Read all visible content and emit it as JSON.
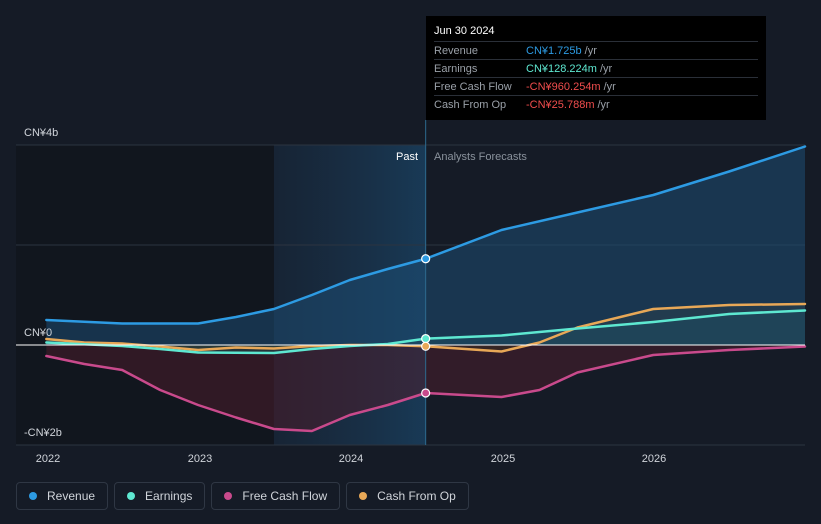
{
  "tooltip": {
    "date": "Jun 30 2024",
    "rows": [
      {
        "label": "Revenue",
        "value": "CN¥1.725b",
        "unit": "/yr",
        "color": "#2d9be3"
      },
      {
        "label": "Earnings",
        "value": "CN¥128.224m",
        "unit": "/yr",
        "color": "#5ee8d1"
      },
      {
        "label": "Free Cash Flow",
        "value": "-CN¥960.254m",
        "unit": "/yr",
        "color": "#f04d4d"
      },
      {
        "label": "Cash From Op",
        "value": "-CN¥25.788m",
        "unit": "/yr",
        "color": "#f04d4d"
      }
    ]
  },
  "legend": [
    {
      "label": "Revenue",
      "color": "#2d9be3"
    },
    {
      "label": "Earnings",
      "color": "#5ee8d1"
    },
    {
      "label": "Free Cash Flow",
      "color": "#c94a8c"
    },
    {
      "label": "Cash From Op",
      "color": "#e8a857"
    }
  ],
  "chart_data": {
    "type": "line",
    "title": "",
    "xlabel": "",
    "ylabel": "",
    "x_ticks": [
      2022,
      2023,
      2024,
      2025,
      2026
    ],
    "x_range": [
      2021.8,
      2027.0
    ],
    "ylim": [
      -2.0,
      4.0
    ],
    "y_ticks": [
      {
        "value": 4,
        "label": "CN¥4b"
      },
      {
        "value": 0,
        "label": "CN¥0"
      },
      {
        "value": -2,
        "label": "-CN¥2b"
      }
    ],
    "gridlines": [
      4,
      2,
      0,
      -2
    ],
    "past_label": "Past",
    "forecast_label": "Analysts Forecasts",
    "past_shade_start": 2023.5,
    "divider_x": 2024.5,
    "series": [
      {
        "name": "Revenue",
        "color": "#2d9be3",
        "fill": "#1d4d73",
        "points": [
          [
            2022.0,
            0.5
          ],
          [
            2022.5,
            0.43
          ],
          [
            2023.0,
            0.43
          ],
          [
            2023.25,
            0.56
          ],
          [
            2023.5,
            0.72
          ],
          [
            2023.75,
            1.0
          ],
          [
            2024.0,
            1.3
          ],
          [
            2024.25,
            1.52
          ],
          [
            2024.5,
            1.725
          ],
          [
            2025.0,
            2.3
          ],
          [
            2025.5,
            2.65
          ],
          [
            2026.0,
            3.0
          ],
          [
            2026.5,
            3.47
          ],
          [
            2027.0,
            3.97
          ]
        ]
      },
      {
        "name": "Earnings",
        "color": "#5ee8d1",
        "fill": "#1f4a4a",
        "points": [
          [
            2022.0,
            0.05
          ],
          [
            2022.5,
            -0.02
          ],
          [
            2022.75,
            -0.08
          ],
          [
            2023.0,
            -0.15
          ],
          [
            2023.5,
            -0.16
          ],
          [
            2023.75,
            -0.08
          ],
          [
            2024.0,
            -0.02
          ],
          [
            2024.25,
            0.02
          ],
          [
            2024.5,
            0.128
          ],
          [
            2025.0,
            0.19
          ],
          [
            2025.5,
            0.33
          ],
          [
            2026.0,
            0.46
          ],
          [
            2026.5,
            0.62
          ],
          [
            2027.0,
            0.69
          ]
        ]
      },
      {
        "name": "Free Cash Flow",
        "color": "#c94a8c",
        "fill": "#4a1e2c",
        "points": [
          [
            2022.0,
            -0.22
          ],
          [
            2022.25,
            -0.38
          ],
          [
            2022.5,
            -0.5
          ],
          [
            2022.75,
            -0.9
          ],
          [
            2023.0,
            -1.2
          ],
          [
            2023.25,
            -1.45
          ],
          [
            2023.5,
            -1.68
          ],
          [
            2023.75,
            -1.72
          ],
          [
            2024.0,
            -1.4
          ],
          [
            2024.25,
            -1.2
          ],
          [
            2024.5,
            -0.96
          ],
          [
            2025.0,
            -1.04
          ],
          [
            2025.25,
            -0.9
          ],
          [
            2025.5,
            -0.55
          ],
          [
            2026.0,
            -0.2
          ],
          [
            2026.5,
            -0.1
          ],
          [
            2027.0,
            -0.03
          ]
        ]
      },
      {
        "name": "Cash From Op",
        "color": "#e8a857",
        "fill": "#3a3020",
        "points": [
          [
            2022.0,
            0.12
          ],
          [
            2022.25,
            0.05
          ],
          [
            2022.5,
            0.03
          ],
          [
            2022.75,
            -0.03
          ],
          [
            2023.0,
            -0.1
          ],
          [
            2023.25,
            -0.05
          ],
          [
            2023.5,
            -0.07
          ],
          [
            2023.75,
            -0.02
          ],
          [
            2024.0,
            0.0
          ],
          [
            2024.25,
            0.0
          ],
          [
            2024.5,
            -0.026
          ],
          [
            2025.0,
            -0.13
          ],
          [
            2025.25,
            0.05
          ],
          [
            2025.5,
            0.35
          ],
          [
            2026.0,
            0.72
          ],
          [
            2026.5,
            0.8
          ],
          [
            2027.0,
            0.82
          ]
        ]
      }
    ],
    "markers": [
      {
        "series": "Revenue",
        "x": 2024.5,
        "y": 1.725
      },
      {
        "series": "Earnings",
        "x": 2024.5,
        "y": 0.128
      },
      {
        "series": "Free Cash Flow",
        "x": 2024.5,
        "y": -0.96
      },
      {
        "series": "Cash From Op",
        "x": 2024.5,
        "y": -0.026
      }
    ]
  }
}
